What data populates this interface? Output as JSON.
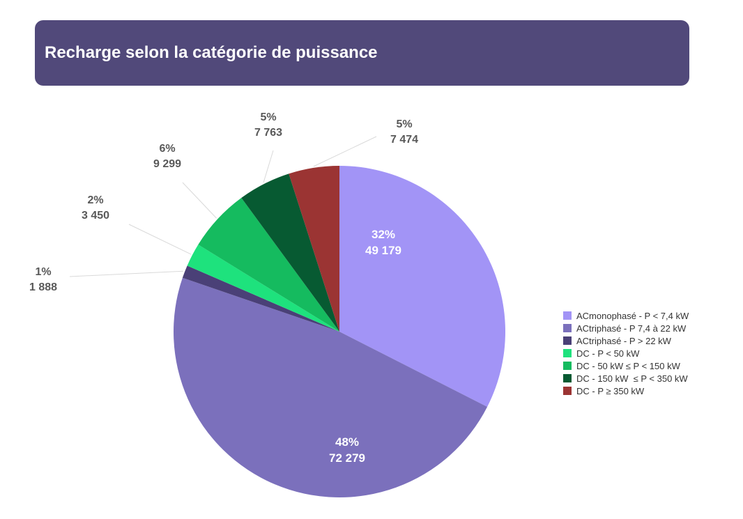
{
  "header": {
    "title": "Recharge selon la catégorie de puissance",
    "background": "#51497A"
  },
  "chart_data": {
    "type": "pie",
    "title": "",
    "start_angle_deg": 0,
    "direction": "clockwise",
    "legend_position": "right",
    "slices": [
      {
        "label": "ACmonophasé - P < 7,4 kW",
        "percent_label": "32%",
        "value_label": "49 179",
        "value": 49179,
        "color": "#A294F6",
        "label_placement": "inside"
      },
      {
        "label": "ACtriphasé - P 7,4 à 22 kW",
        "percent_label": "48%",
        "value_label": "72 279",
        "value": 72279,
        "color": "#7B70BC",
        "label_placement": "inside"
      },
      {
        "label": "ACtriphasé - P > 22 kW",
        "percent_label": "1%",
        "value_label": "1 888",
        "value": 1888,
        "color": "#4A4077",
        "label_placement": "outside"
      },
      {
        "label": "DC - P < 50 kW",
        "percent_label": "2%",
        "value_label": "3 450",
        "value": 3450,
        "color": "#1EE27D",
        "label_placement": "outside"
      },
      {
        "label": "DC - 50 kW ≤ P < 150 kW",
        "percent_label": "6%",
        "value_label": "9 299",
        "value": 9299,
        "color": "#15BB5F",
        "label_placement": "outside"
      },
      {
        "label": "DC - 150 kW  ≤ P < 350 kW",
        "percent_label": "5%",
        "value_label": "7 763",
        "value": 7763,
        "color": "#075A32",
        "label_placement": "outside"
      },
      {
        "label": "DC - P ≥ 350 kW",
        "percent_label": "5%",
        "value_label": "7 474",
        "value": 7474,
        "color": "#9B3433",
        "label_placement": "outside"
      }
    ]
  }
}
